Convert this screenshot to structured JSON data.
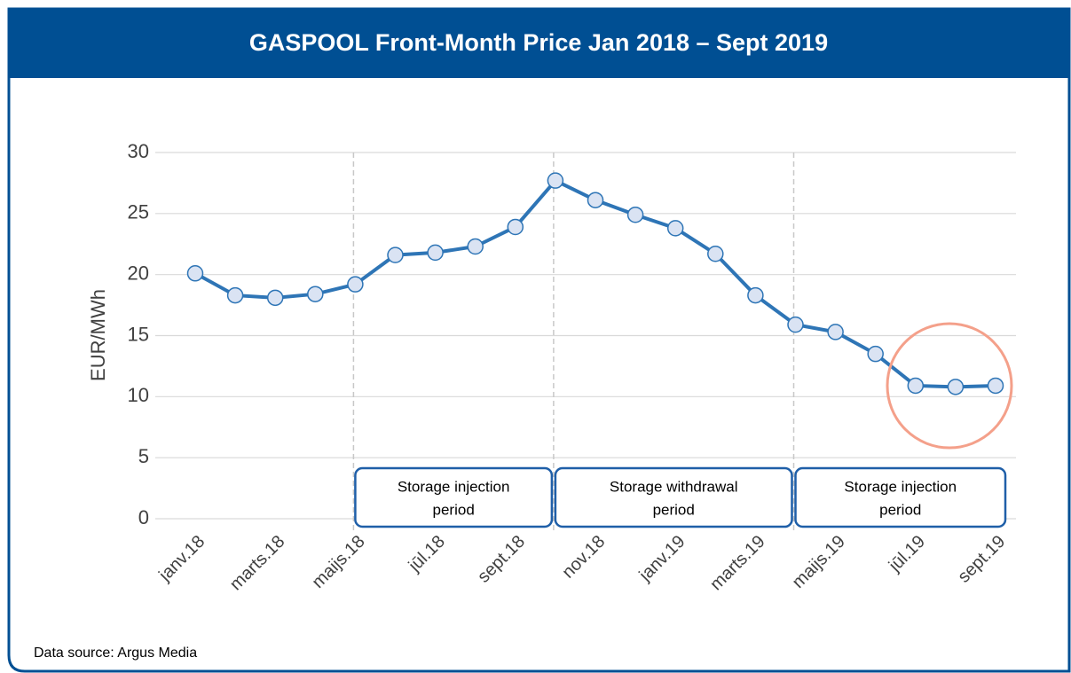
{
  "title": "GASPOOL Front-Month Price Jan 2018 – Sept 2019",
  "source": "Data source: Argus Media",
  "chart_data": {
    "type": "line",
    "ylabel": "EUR/MWh",
    "categories": [
      "janv.18",
      null,
      "marts.18",
      null,
      "maijs.18",
      null,
      "jūl.18",
      null,
      "sept.18",
      null,
      "nov.18",
      null,
      "janv.19",
      null,
      "marts.19",
      null,
      "maijs.19",
      null,
      "jūl.19",
      null,
      "sept.19"
    ],
    "series": [
      {
        "name": "GASPOOL",
        "color": "#2e75b6",
        "values": [
          20.1,
          18.3,
          18.1,
          18.4,
          19.2,
          21.6,
          21.8,
          22.3,
          23.9,
          27.7,
          26.1,
          24.9,
          23.8,
          21.7,
          18.3,
          15.9,
          15.3,
          13.5,
          10.9,
          10.8,
          10.9
        ]
      }
    ],
    "ylim": [
      0,
      30
    ],
    "yticks": [
      0,
      5,
      10,
      15,
      20,
      25,
      30
    ],
    "grid": true,
    "annotations": [
      [
        "Storage injection",
        "period"
      ],
      [
        "Storage withdrawal",
        "period"
      ],
      [
        "Storage injection",
        "period"
      ]
    ]
  }
}
